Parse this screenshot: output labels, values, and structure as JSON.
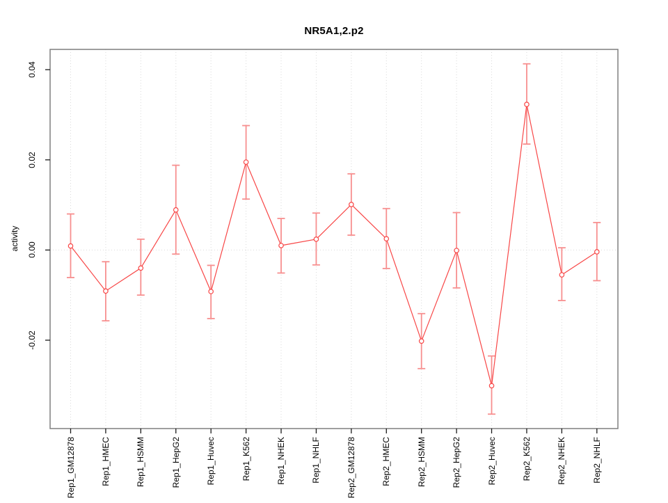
{
  "chart_data": {
    "type": "line",
    "title": "NR5A1,2.p2",
    "ylabel": "activity",
    "xlabel": "",
    "legend": "none",
    "grid": "vertical dotted gridlines at each category plus dotted horizontal line at y=0",
    "categories": [
      "Rep1_GM12878",
      "Rep1_HMEC",
      "Rep1_HSMM",
      "Rep1_HepG2",
      "Rep1_Huvec",
      "Rep1_K562",
      "Rep1_NHEK",
      "Rep1_NHLF",
      "Rep2_GM12878",
      "Rep2_HMEC",
      "Rep2_HSMM",
      "Rep2_HepG2",
      "Rep2_Huvec",
      "Rep2_K562",
      "Rep2_NHEK",
      "Rep2_NHLF"
    ],
    "series": [
      {
        "name": "activity",
        "marker": "open-circle",
        "values": [
          0.0009,
          -0.0091,
          -0.004,
          0.0089,
          -0.0092,
          0.0195,
          0.001,
          0.0024,
          0.0101,
          0.0025,
          -0.0202,
          -0.0001,
          -0.0301,
          0.0323,
          -0.0055,
          -0.0004
        ],
        "error_low": [
          -0.0061,
          -0.0157,
          -0.01,
          -0.0009,
          -0.0152,
          0.0113,
          -0.0051,
          -0.0033,
          0.0033,
          -0.0041,
          -0.0263,
          -0.0084,
          -0.0364,
          0.0235,
          -0.0112,
          -0.0068
        ],
        "error_high": [
          0.008,
          -0.0026,
          0.0024,
          0.0188,
          -0.0034,
          0.0276,
          0.007,
          0.0082,
          0.0169,
          0.0092,
          -0.0141,
          0.0083,
          -0.0235,
          0.0413,
          0.0005,
          0.0061
        ]
      }
    ],
    "yticks": [
      -0.02,
      0.0,
      0.02,
      0.04
    ],
    "ytick_labels": [
      "-0.02",
      "0.00",
      "0.02",
      "0.04"
    ],
    "ylim": [
      -0.0396,
      0.0445
    ],
    "colors": {
      "line": "#f84646",
      "marker_stroke": "#f84646",
      "marker_fill": "#ffffff",
      "error_bar": "#f78f8f",
      "grid": "#d9d9d9",
      "frame": "#7f7f7f",
      "tick": "#1a1a1a",
      "text": "#000000"
    }
  }
}
